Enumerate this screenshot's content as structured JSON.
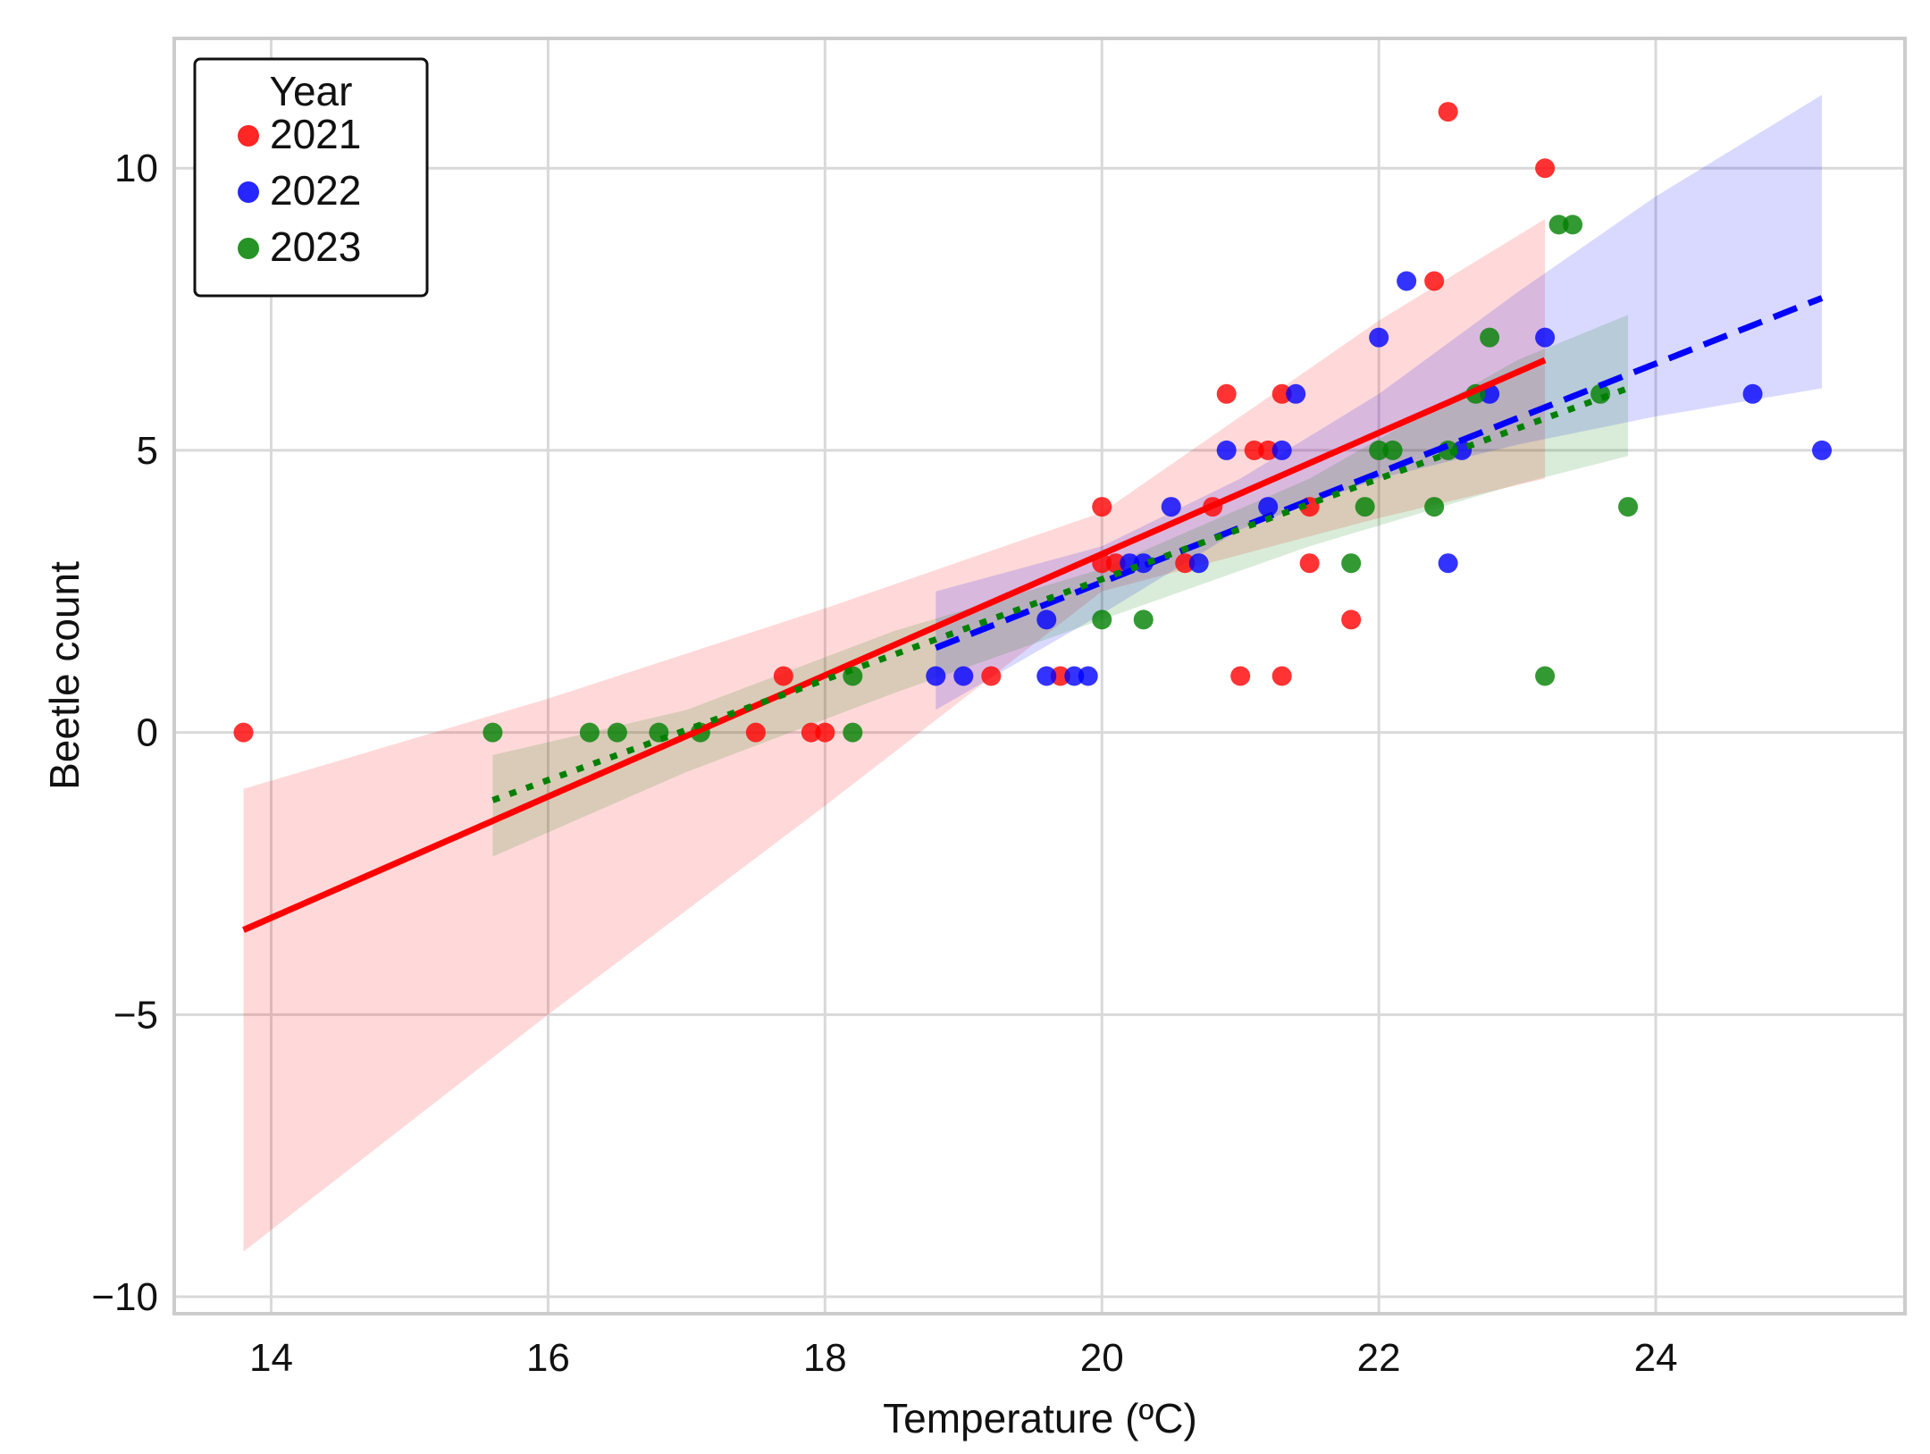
{
  "chart_data": {
    "type": "scatter",
    "title": "",
    "xlabel": "Temperature (ºC)",
    "ylabel": "Beetle count",
    "xlim": [
      13.3,
      25.8
    ],
    "ylim": [
      -10.3,
      12.3
    ],
    "xticks": [
      14,
      16,
      18,
      20,
      22,
      24
    ],
    "yticks": [
      -10,
      -5,
      0,
      5,
      10
    ],
    "xtick_labels": [
      "14",
      "16",
      "18",
      "20",
      "22",
      "24"
    ],
    "ytick_labels": [
      "−10",
      "−5",
      "0",
      "5",
      "10"
    ],
    "grid": true,
    "legend": {
      "title": "Year",
      "placement": "top-left"
    },
    "series": [
      {
        "name": "2021",
        "color": "#ff0000",
        "line_style": "solid",
        "points": [
          [
            13.8,
            0
          ],
          [
            17.5,
            0
          ],
          [
            17.7,
            1
          ],
          [
            17.9,
            0
          ],
          [
            18.0,
            0
          ],
          [
            19.2,
            1
          ],
          [
            19.7,
            1
          ],
          [
            20.0,
            4
          ],
          [
            20.0,
            3
          ],
          [
            20.1,
            3
          ],
          [
            20.6,
            3
          ],
          [
            20.8,
            4
          ],
          [
            20.9,
            6
          ],
          [
            21.0,
            1
          ],
          [
            21.1,
            5
          ],
          [
            21.2,
            5
          ],
          [
            21.3,
            6
          ],
          [
            21.3,
            1
          ],
          [
            21.5,
            3
          ],
          [
            21.5,
            4
          ],
          [
            21.8,
            2
          ],
          [
            22.4,
            8
          ],
          [
            22.5,
            11
          ],
          [
            23.2,
            10
          ]
        ],
        "fit": {
          "x": [
            13.8,
            23.2
          ],
          "y": [
            -3.5,
            6.6
          ]
        },
        "ci_band": {
          "x": [
            13.8,
            16.0,
            18.0,
            20.0,
            22.0,
            23.2
          ],
          "lower": [
            -9.2,
            -5.0,
            -1.3,
            2.5,
            3.8,
            4.5
          ],
          "upper": [
            -1.0,
            0.6,
            2.2,
            3.9,
            7.3,
            9.1
          ]
        }
      },
      {
        "name": "2022",
        "color": "#0000ff",
        "line_style": "dashed",
        "points": [
          [
            18.8,
            1
          ],
          [
            19.0,
            1
          ],
          [
            19.6,
            1
          ],
          [
            19.6,
            2
          ],
          [
            19.8,
            1
          ],
          [
            19.9,
            1
          ],
          [
            20.2,
            3
          ],
          [
            20.3,
            3
          ],
          [
            20.5,
            4
          ],
          [
            20.7,
            3
          ],
          [
            20.9,
            5
          ],
          [
            21.2,
            4
          ],
          [
            21.3,
            5
          ],
          [
            21.4,
            6
          ],
          [
            22.0,
            7
          ],
          [
            22.2,
            8
          ],
          [
            22.5,
            3
          ],
          [
            22.6,
            5
          ],
          [
            22.8,
            6
          ],
          [
            23.2,
            7
          ],
          [
            24.7,
            6
          ],
          [
            25.2,
            5
          ]
        ],
        "fit": {
          "x": [
            18.8,
            25.2
          ],
          "y": [
            1.5,
            7.7
          ]
        },
        "ci_band": {
          "x": [
            18.8,
            20.0,
            21.0,
            22.0,
            23.0,
            24.0,
            25.2
          ],
          "lower": [
            0.4,
            2.1,
            3.6,
            4.5,
            5.1,
            5.6,
            6.1
          ],
          "upper": [
            2.5,
            3.3,
            4.5,
            6.0,
            7.8,
            9.5,
            11.3
          ]
        }
      },
      {
        "name": "2023",
        "color": "#008000",
        "line_style": "dotted",
        "points": [
          [
            15.6,
            0
          ],
          [
            16.3,
            0
          ],
          [
            16.5,
            0
          ],
          [
            16.8,
            0
          ],
          [
            17.1,
            0
          ],
          [
            18.2,
            1
          ],
          [
            18.2,
            0
          ],
          [
            20.0,
            2
          ],
          [
            20.3,
            2
          ],
          [
            21.8,
            3
          ],
          [
            21.9,
            4
          ],
          [
            22.0,
            5
          ],
          [
            22.1,
            5
          ],
          [
            22.4,
            4
          ],
          [
            22.5,
            5
          ],
          [
            22.7,
            6
          ],
          [
            22.8,
            7
          ],
          [
            23.2,
            1
          ],
          [
            23.3,
            9
          ],
          [
            23.4,
            9
          ],
          [
            23.6,
            6
          ],
          [
            23.8,
            4
          ]
        ],
        "fit": {
          "x": [
            15.6,
            23.8
          ],
          "y": [
            -1.2,
            6.1
          ]
        },
        "ci_band": {
          "x": [
            15.6,
            17.0,
            18.5,
            20.0,
            21.5,
            23.0,
            23.8
          ],
          "lower": [
            -2.2,
            -0.7,
            0.7,
            2.0,
            3.3,
            4.4,
            4.9
          ],
          "upper": [
            -0.4,
            0.4,
            1.8,
            2.9,
            4.5,
            6.6,
            7.4
          ]
        }
      }
    ]
  }
}
